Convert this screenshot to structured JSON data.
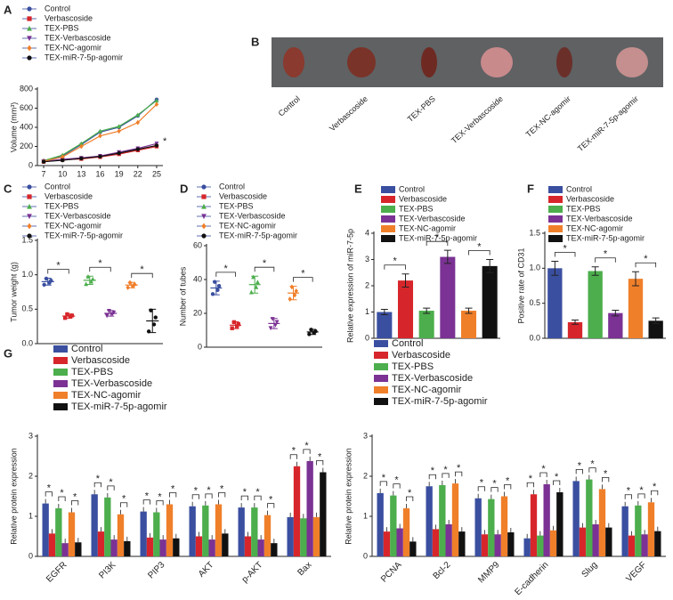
{
  "chart_data": [
    {
      "panel": "A",
      "type": "line",
      "ylabel": "Volume (mm³)",
      "annotation": "*",
      "x": [
        7,
        10,
        13,
        16,
        19,
        22,
        25
      ],
      "xlim": [
        6,
        26
      ],
      "xticks": [
        7,
        10,
        13,
        16,
        19,
        22,
        25
      ],
      "ylim": [
        0,
        800
      ],
      "yticks": [
        0,
        200,
        400,
        600,
        800
      ],
      "series": [
        {
          "name": "Control",
          "color": "#3a4fa0",
          "values": [
            50,
            100,
            220,
            350,
            400,
            520,
            690
          ]
        },
        {
          "name": "Verbascoside",
          "color": "#d7262b",
          "values": [
            40,
            60,
            70,
            90,
            120,
            160,
            200
          ]
        },
        {
          "name": "TEX-PBS",
          "color": "#4cae4c",
          "values": [
            50,
            110,
            230,
            360,
            410,
            530,
            680
          ]
        },
        {
          "name": "TEX-Verbascoside",
          "color": "#7b3294",
          "values": [
            45,
            65,
            80,
            100,
            140,
            180,
            230
          ]
        },
        {
          "name": "TEX-NC-agomir",
          "color": "#f07f2a",
          "values": [
            45,
            90,
            200,
            310,
            360,
            450,
            640
          ]
        },
        {
          "name": "TEX-miR-7-5p-agomir",
          "color": "#111111",
          "values": [
            40,
            55,
            75,
            95,
            130,
            170,
            210
          ]
        }
      ]
    },
    {
      "panel": "B",
      "type": "image",
      "categories": [
        "Control",
        "Verbascoside",
        "TEX-PBS",
        "TEX-Verbascoside",
        "TEX-NC-agomir",
        "TEX-miR-7-5p-agomir"
      ]
    },
    {
      "panel": "C",
      "type": "dotplot",
      "ylabel": "Tumor weight (g)",
      "annotation": "*",
      "ylim": [
        0,
        1.5
      ],
      "yticks": [
        {
          "value": 0,
          "label": "0.0"
        },
        {
          "value": 0.5,
          "label": "0.5"
        },
        {
          "value": 1,
          "label": "1.0"
        },
        {
          "value": 1.5,
          "label": "1.5"
        }
      ],
      "series": [
        {
          "name": "Control",
          "color": "#3a4fa0",
          "values": [
            0.9
          ],
          "errors": [
            0.05
          ]
        },
        {
          "name": "Verbascoside",
          "color": "#d7262b",
          "values": [
            0.4
          ],
          "errors": [
            0.03
          ]
        },
        {
          "name": "TEX-PBS",
          "color": "#4cae4c",
          "values": [
            0.92
          ],
          "errors": [
            0.06
          ]
        },
        {
          "name": "TEX-Verbascoside",
          "color": "#7b3294",
          "values": [
            0.44
          ],
          "errors": [
            0.04
          ]
        },
        {
          "name": "TEX-NC-agomir",
          "color": "#f07f2a",
          "values": [
            0.85
          ],
          "errors": [
            0.04
          ]
        },
        {
          "name": "TEX-miR-7-5p-agomir",
          "color": "#111111",
          "values": [
            0.33
          ],
          "errors": [
            0.17
          ]
        }
      ]
    },
    {
      "panel": "D",
      "type": "dotplot",
      "ylabel": "Number of tubes",
      "annotation": "*",
      "ylim": [
        0,
        60
      ],
      "yticks": [
        0,
        20,
        40,
        60
      ],
      "series": [
        {
          "name": "Control",
          "color": "#3a4fa0",
          "values": [
            35
          ],
          "errors": [
            4
          ]
        },
        {
          "name": "Verbascoside",
          "color": "#d7262b",
          "values": [
            13
          ],
          "errors": [
            2
          ]
        },
        {
          "name": "TEX-PBS",
          "color": "#4cae4c",
          "values": [
            37
          ],
          "errors": [
            5
          ]
        },
        {
          "name": "TEX-Verbascoside",
          "color": "#7b3294",
          "values": [
            14
          ],
          "errors": [
            3
          ]
        },
        {
          "name": "TEX-NC-agomir",
          "color": "#f07f2a",
          "values": [
            32
          ],
          "errors": [
            4
          ]
        },
        {
          "name": "TEX-miR-7-5p-agomir",
          "color": "#111111",
          "values": [
            9
          ],
          "errors": [
            1.5
          ]
        }
      ]
    },
    {
      "panel": "E",
      "type": "bar",
      "ylabel": "Relative expression of miR-7-5p",
      "annotation": "*",
      "ylim": [
        0,
        4
      ],
      "yticks": [
        0,
        1,
        2,
        3,
        4
      ],
      "series": [
        {
          "name": "Control",
          "color": "#3a4fa0",
          "values": [
            1
          ],
          "errors": [
            0.1
          ]
        },
        {
          "name": "Verbascoside",
          "color": "#d7262b",
          "values": [
            2.2
          ],
          "errors": [
            0.25
          ]
        },
        {
          "name": "TEX-PBS",
          "color": "#4cae4c",
          "values": [
            1.05
          ],
          "errors": [
            0.1
          ]
        },
        {
          "name": "TEX-Verbascoside",
          "color": "#7b3294",
          "values": [
            3.1
          ],
          "errors": [
            0.25
          ]
        },
        {
          "name": "TEX-NC-agomir",
          "color": "#f07f2a",
          "values": [
            1.05
          ],
          "errors": [
            0.1
          ]
        },
        {
          "name": "TEX-miR-7-5p-agomir",
          "color": "#111111",
          "values": [
            2.75
          ],
          "errors": [
            0.25
          ]
        }
      ]
    },
    {
      "panel": "F",
      "type": "bar",
      "ylabel": "Positive rate of CD31",
      "annotation": "*",
      "ylim": [
        0,
        1.5
      ],
      "yticks": [
        {
          "value": 0,
          "label": "0.0"
        },
        {
          "value": 0.5,
          "label": "0.5"
        },
        {
          "value": 1,
          "label": "1.0"
        },
        {
          "value": 1.5,
          "label": "1.5"
        }
      ],
      "series": [
        {
          "name": "Control",
          "color": "#3a4fa0",
          "values": [
            1
          ],
          "errors": [
            0.1
          ]
        },
        {
          "name": "Verbascoside",
          "color": "#d7262b",
          "values": [
            0.23
          ],
          "errors": [
            0.03
          ]
        },
        {
          "name": "TEX-PBS",
          "color": "#4cae4c",
          "values": [
            0.96
          ],
          "errors": [
            0.06
          ]
        },
        {
          "name": "TEX-Verbascoside",
          "color": "#7b3294",
          "values": [
            0.36
          ],
          "errors": [
            0.04
          ]
        },
        {
          "name": "TEX-NC-agomir",
          "color": "#f07f2a",
          "values": [
            0.85
          ],
          "errors": [
            0.1
          ]
        },
        {
          "name": "TEX-miR-7-5p-agomir",
          "color": "#111111",
          "values": [
            0.25
          ],
          "errors": [
            0.04
          ]
        }
      ]
    },
    {
      "panel": "G",
      "type": "groupedbar",
      "ylabel": "Relative protein expression",
      "annotation": "*",
      "categories": [
        "EGFR",
        "PI3K",
        "PIP3",
        "AKT",
        "p-AKT",
        "Bax"
      ],
      "ylim": [
        0,
        3
      ],
      "yticks": [
        0,
        1,
        2,
        3
      ],
      "series": [
        {
          "name": "Control",
          "color": "#3a4fa0",
          "values": [
            1.32,
            1.55,
            1.12,
            1.25,
            1.22,
            0.98
          ]
        },
        {
          "name": "Verbascoside",
          "color": "#d7262b",
          "values": [
            0.57,
            0.62,
            0.47,
            0.5,
            0.5,
            2.25
          ]
        },
        {
          "name": "TEX-PBS",
          "color": "#4cae4c",
          "values": [
            1.2,
            1.47,
            1.1,
            1.27,
            1.22,
            0.95
          ]
        },
        {
          "name": "TEX-Verbascoside",
          "color": "#7b3294",
          "values": [
            0.33,
            0.42,
            0.42,
            0.42,
            0.42,
            2.38
          ]
        },
        {
          "name": "TEX-NC-agomir",
          "color": "#f07f2a",
          "values": [
            1.1,
            1.05,
            1.3,
            1.3,
            1.03,
            0.98
          ]
        },
        {
          "name": "TEX-miR-7-5p-agomir",
          "color": "#111111",
          "values": [
            0.35,
            0.38,
            0.45,
            0.57,
            0.33,
            2.1
          ]
        }
      ]
    },
    {
      "type": "groupedbar",
      "ylabel": "Relative protein expression",
      "annotation": "*",
      "categories": [
        "PCNA",
        "Bcl-2",
        "MMP9",
        "E-cadherin",
        "Slug",
        "VEGF"
      ],
      "ylim": [
        0,
        3
      ],
      "yticks": [
        0,
        1,
        2,
        3
      ],
      "series": [
        {
          "name": "Control",
          "color": "#3a4fa0",
          "values": [
            1.58,
            1.75,
            1.45,
            0.45,
            1.88,
            1.25
          ]
        },
        {
          "name": "Verbascoside",
          "color": "#d7262b",
          "values": [
            0.62,
            0.68,
            0.55,
            1.55,
            0.72,
            0.52
          ]
        },
        {
          "name": "TEX-PBS",
          "color": "#4cae4c",
          "values": [
            1.52,
            1.78,
            1.43,
            0.52,
            1.92,
            1.27
          ]
        },
        {
          "name": "TEX-Verbascoside",
          "color": "#7b3294",
          "values": [
            0.7,
            0.8,
            0.55,
            1.8,
            0.8,
            0.55
          ]
        },
        {
          "name": "TEX-NC-agomir",
          "color": "#f07f2a",
          "values": [
            1.2,
            1.82,
            1.5,
            0.65,
            1.68,
            1.35
          ]
        },
        {
          "name": "TEX-miR-7-5p-agomir",
          "color": "#111111",
          "values": [
            0.37,
            0.62,
            0.6,
            1.6,
            0.72,
            0.63
          ]
        }
      ]
    }
  ]
}
